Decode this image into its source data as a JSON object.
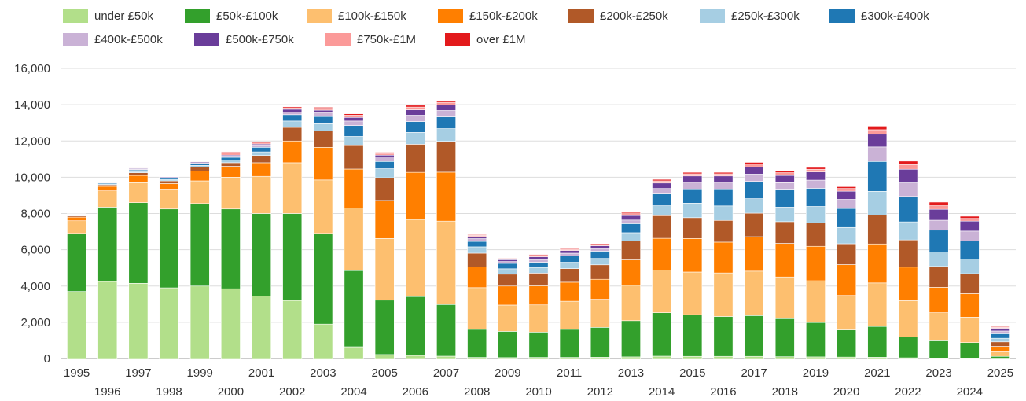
{
  "chart_data": {
    "type": "bar",
    "stacked": true,
    "title": "",
    "xlabel": "",
    "ylabel": "",
    "ylim": [
      0,
      16000
    ],
    "yticks": [
      0,
      2000,
      4000,
      6000,
      8000,
      10000,
      12000,
      14000,
      16000
    ],
    "ytick_labels": [
      "0",
      "2,000",
      "4,000",
      "6,000",
      "8,000",
      "10,000",
      "12,000",
      "14,000",
      "16,000"
    ],
    "grid": true,
    "legend_position": "top",
    "categories": [
      "1995",
      "1996",
      "1997",
      "1998",
      "1999",
      "2000",
      "2001",
      "2002",
      "2003",
      "2004",
      "2005",
      "2006",
      "2007",
      "2008",
      "2009",
      "2010",
      "2011",
      "2012",
      "2013",
      "2014",
      "2015",
      "2016",
      "2017",
      "2018",
      "2019",
      "2020",
      "2021",
      "2022",
      "2023",
      "2024",
      "2025"
    ],
    "series": [
      {
        "name": "under £50k",
        "color": "#b2df8a",
        "values": [
          3700,
          4250,
          4150,
          3900,
          4000,
          3850,
          3450,
          3200,
          1900,
          650,
          220,
          170,
          130,
          60,
          50,
          60,
          60,
          70,
          90,
          130,
          120,
          120,
          120,
          100,
          90,
          80,
          70,
          40,
          30,
          30,
          20
        ]
      },
      {
        "name": "£50k-£100k",
        "color": "#33a02c",
        "values": [
          3200,
          4100,
          4450,
          4350,
          4550,
          4400,
          4550,
          4800,
          5000,
          4200,
          3000,
          3250,
          2850,
          1550,
          1450,
          1400,
          1550,
          1650,
          2000,
          2400,
          2300,
          2200,
          2250,
          2100,
          1900,
          1500,
          1700,
          1150,
          950,
          850,
          100
        ]
      },
      {
        "name": "£100k-£150k",
        "color": "#fdbf6f",
        "values": [
          700,
          900,
          1100,
          1050,
          1250,
          1750,
          2050,
          2800,
          2950,
          3450,
          3400,
          4250,
          4600,
          2300,
          1450,
          1500,
          1550,
          1550,
          1950,
          2350,
          2350,
          2400,
          2450,
          2300,
          2300,
          1900,
          2400,
          2000,
          1550,
          1400,
          250
        ]
      },
      {
        "name": "£150k-£200k",
        "color": "#ff7f00",
        "values": [
          200,
          250,
          400,
          350,
          550,
          600,
          750,
          1200,
          1800,
          2150,
          2100,
          2600,
          2700,
          1150,
          1050,
          1050,
          1050,
          1100,
          1400,
          1750,
          1850,
          1700,
          1900,
          1850,
          1900,
          1700,
          2150,
          1850,
          1400,
          1300,
          300
        ]
      },
      {
        "name": "£200k-£250k",
        "color": "#b15928",
        "values": [
          60,
          80,
          150,
          150,
          200,
          200,
          400,
          750,
          900,
          1300,
          1250,
          1550,
          1700,
          750,
          650,
          700,
          750,
          800,
          1050,
          1250,
          1150,
          1200,
          1300,
          1200,
          1300,
          1150,
          1600,
          1500,
          1150,
          1100,
          250
        ]
      },
      {
        "name": "£250k-£300k",
        "color": "#a6cee3",
        "values": [
          30,
          50,
          70,
          80,
          100,
          150,
          200,
          350,
          400,
          500,
          500,
          650,
          700,
          350,
          300,
          300,
          350,
          350,
          450,
          550,
          800,
          800,
          800,
          800,
          900,
          900,
          1300,
          1000,
          800,
          800,
          200
        ]
      },
      {
        "name": "£300k-£400k",
        "color": "#1f78b4",
        "values": [
          40,
          50,
          80,
          70,
          100,
          150,
          250,
          350,
          400,
          600,
          400,
          600,
          650,
          300,
          300,
          300,
          350,
          400,
          500,
          650,
          750,
          900,
          950,
          950,
          1000,
          1050,
          1650,
          1400,
          1200,
          1000,
          250
        ]
      },
      {
        "name": "£400k-£500k",
        "color": "#cab2d6",
        "values": [
          20,
          30,
          40,
          40,
          50,
          60,
          100,
          150,
          200,
          250,
          200,
          350,
          350,
          150,
          100,
          150,
          150,
          150,
          200,
          300,
          400,
          400,
          400,
          400,
          450,
          500,
          800,
          750,
          550,
          550,
          150
        ]
      },
      {
        "name": "£500k-£750k",
        "color": "#6a3d9a",
        "values": [
          20,
          20,
          40,
          40,
          50,
          60,
          80,
          150,
          150,
          200,
          150,
          300,
          300,
          120,
          100,
          150,
          150,
          150,
          250,
          300,
          350,
          350,
          400,
          400,
          450,
          450,
          700,
          750,
          600,
          550,
          150
        ]
      },
      {
        "name": "£750k-£1M",
        "color": "#fb9a99",
        "values": [
          10,
          10,
          20,
          20,
          30,
          150,
          60,
          80,
          100,
          120,
          100,
          150,
          150,
          60,
          50,
          80,
          60,
          70,
          100,
          120,
          120,
          120,
          150,
          150,
          150,
          150,
          250,
          250,
          200,
          150,
          50
        ]
      },
      {
        "name": "over £1M",
        "color": "#e31a1c",
        "values": [
          10,
          10,
          20,
          20,
          20,
          40,
          50,
          60,
          60,
          80,
          60,
          100,
          100,
          40,
          30,
          50,
          40,
          50,
          70,
          80,
          80,
          80,
          100,
          100,
          100,
          100,
          200,
          200,
          200,
          120,
          40
        ]
      }
    ]
  }
}
